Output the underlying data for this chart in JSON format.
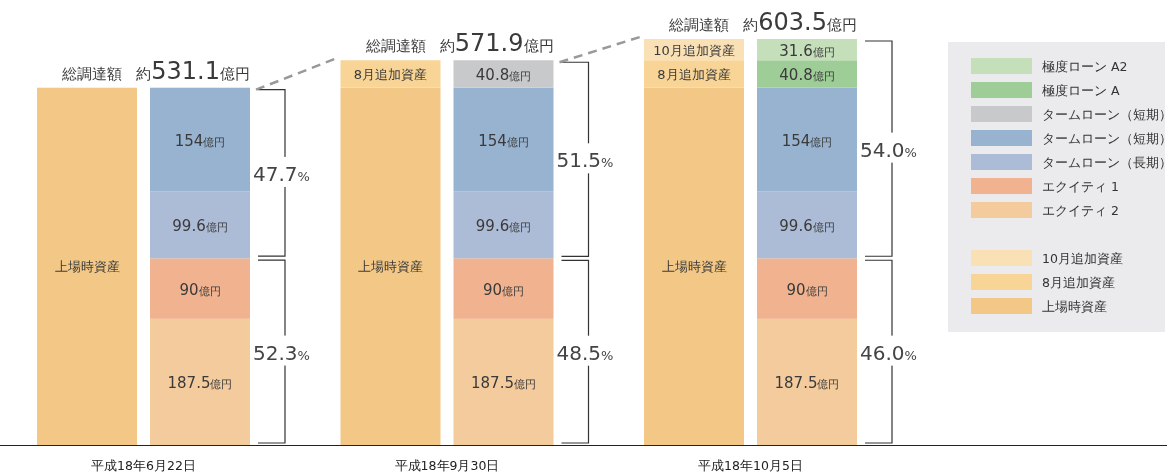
{
  "chart_data": [
    {
      "type": "bar",
      "stacked": true,
      "title": "総調達額",
      "subtitle": "約531.1億円",
      "xlabel": "平成18年6月22日",
      "categories": [
        null,
        null
      ],
      "legend": false,
      "series": [
        {
          "name": "上場時資産",
          "color": "#f3c886",
          "values": [
            531.1,
            null
          ]
        },
        {
          "color": "#f4cb9d",
          "values": [
            null,
            187.5
          ],
          "value_labels": [
            null,
            "187.5億円"
          ]
        },
        {
          "color": "#f1b38f",
          "values": [
            null,
            90
          ],
          "value_labels": [
            null,
            "90億円"
          ]
        },
        {
          "color": "#acbbd6",
          "values": [
            null,
            99.6
          ],
          "value_labels": [
            null,
            "99.6億円"
          ]
        },
        {
          "color": "#98b3cf",
          "values": [
            null,
            154
          ],
          "value_labels": [
            null,
            "154億円"
          ]
        }
      ],
      "annotations": [
        "52.3%",
        "47.7%"
      ]
    },
    {
      "type": "bar",
      "stacked": true,
      "title": "総調達額",
      "subtitle": "約571.9億円",
      "xlabel": "平成18年9月30日",
      "categories": [
        null,
        null
      ],
      "legend": false,
      "series": [
        {
          "name": "上場時資産",
          "color": "#f3c886",
          "values": [
            531.1,
            null
          ]
        },
        {
          "name": "8月追加資産",
          "color": "#f8d596",
          "values": [
            40.8,
            null
          ]
        },
        {
          "color": "#f4cb9d",
          "values": [
            null,
            187.5
          ],
          "value_labels": [
            null,
            "187.5億円"
          ]
        },
        {
          "color": "#f1b38f",
          "values": [
            null,
            90
          ],
          "value_labels": [
            null,
            "90億円"
          ]
        },
        {
          "color": "#acbbd6",
          "values": [
            null,
            99.6
          ],
          "value_labels": [
            null,
            "99.6億円"
          ]
        },
        {
          "color": "#98b3cf",
          "values": [
            null,
            154
          ],
          "value_labels": [
            null,
            "154億円"
          ]
        },
        {
          "color": "#c8c9cb",
          "values": [
            null,
            40.8
          ],
          "value_labels": [
            null,
            "40.8億円"
          ]
        }
      ],
      "annotations": [
        "48.5%",
        "51.5%"
      ]
    },
    {
      "type": "bar",
      "stacked": true,
      "title": "総調達額",
      "subtitle": "約603.5億円",
      "xlabel": "平成18年10月5日",
      "categories": [
        null,
        null
      ],
      "legend": "right",
      "series": [
        {
          "name": "上場時資産",
          "color": "#f3c886",
          "values": [
            531.1,
            null
          ]
        },
        {
          "name": "8月追加資産",
          "color": "#f8d596",
          "values": [
            40.8,
            null
          ]
        },
        {
          "name": "10月追加資産",
          "color": "#f9e1b5",
          "values": [
            31.6,
            null
          ]
        },
        {
          "name": "エクイティ 2",
          "color": "#f4cb9d",
          "values": [
            null,
            187.5
          ],
          "value_labels": [
            null,
            "187.5億円"
          ]
        },
        {
          "name": "エクイティ 1",
          "color": "#f1b38f",
          "values": [
            null,
            90
          ],
          "value_labels": [
            null,
            "90億円"
          ]
        },
        {
          "name": "タームローン（長期）",
          "color": "#acbbd6",
          "values": [
            null,
            99.6
          ],
          "value_labels": [
            null,
            "99.6億円"
          ]
        },
        {
          "name": "タームローン（短期）",
          "color": "#98b3cf",
          "values": [
            null,
            154
          ],
          "value_labels": [
            null,
            "154億円"
          ]
        },
        {
          "name": "タームローン（短期）",
          "color": "#c8c9cb",
          "values": [
            null,
            null
          ]
        },
        {
          "name": "極度ローン A",
          "color": "#9fcd98",
          "values": [
            null,
            40.8
          ],
          "value_labels": [
            null,
            "40.8億円"
          ]
        },
        {
          "name": "極度ローン A2",
          "color": "#c4dfb9",
          "values": [
            null,
            31.6
          ],
          "value_labels": [
            null,
            "31.6億円"
          ]
        }
      ],
      "annotations": [
        "46.0%",
        "54.0%"
      ]
    }
  ]
}
